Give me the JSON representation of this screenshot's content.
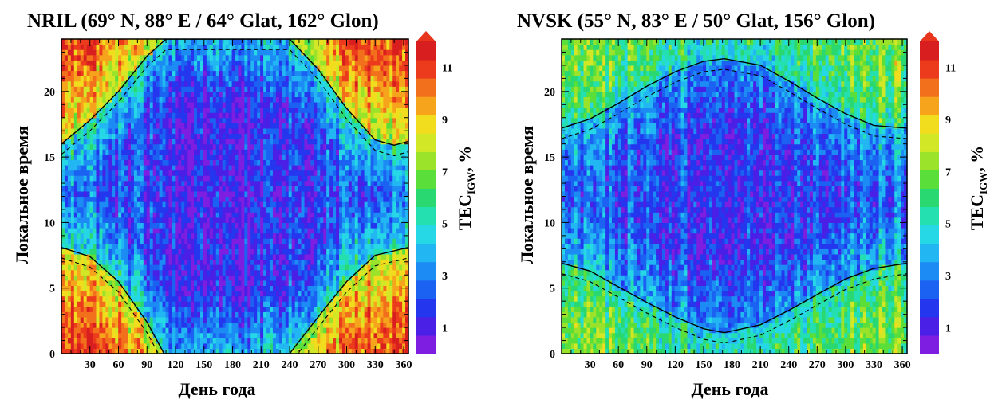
{
  "chart_data": [
    {
      "type": "heatmap",
      "title": "NRIL (69° N, 88° E / 64° Glat, 162° Glon)",
      "xlabel": "День года",
      "ylabel": "Локальное время",
      "xlim": [
        0,
        365
      ],
      "ylim": [
        0,
        24
      ],
      "xticks": [
        30,
        60,
        90,
        120,
        150,
        180,
        210,
        240,
        270,
        300,
        330,
        360
      ],
      "yticks": [
        0,
        5,
        10,
        15,
        20
      ],
      "colorbar": {
        "label_main": "TEC",
        "label_sub": "IGW",
        "label_unit": ", %",
        "range": [
          0,
          12
        ],
        "ticks": [
          1,
          3,
          5,
          7,
          9,
          11
        ],
        "colors": [
          "#7d1ee0",
          "#4a1fe6",
          "#2436ee",
          "#1c62f2",
          "#1c8cf4",
          "#22b6f2",
          "#26d8e6",
          "#24e0b0",
          "#2ad872",
          "#5ade3a",
          "#9ae32a",
          "#d2e826",
          "#f2dc1e",
          "#f6a41c",
          "#f2701c",
          "#ec3a1c",
          "#d81e1e"
        ]
      },
      "terminator_night_start_hours": [
        [
          0,
          16
        ],
        [
          30,
          17.8
        ],
        [
          60,
          20
        ],
        [
          90,
          22.7
        ],
        [
          110,
          24
        ],
        [
          240,
          24
        ],
        [
          270,
          21.7
        ],
        [
          300,
          18.7
        ],
        [
          330,
          16.3
        ],
        [
          350,
          15.9
        ],
        [
          365,
          16.2
        ]
      ],
      "terminator_morning_hours": [
        [
          0,
          8.1
        ],
        [
          30,
          7.4
        ],
        [
          60,
          5.5
        ],
        [
          90,
          2.4
        ],
        [
          108,
          0
        ],
        [
          240,
          0
        ],
        [
          270,
          2.8
        ],
        [
          300,
          5.5
        ],
        [
          330,
          7.5
        ],
        [
          365,
          8.1
        ]
      ],
      "features": {
        "low_region_days": [
          100,
          290
        ],
        "low_region_hours": [
          6,
          17
        ],
        "high_region": "winter night"
      }
    },
    {
      "type": "heatmap",
      "title": "NVSK (55° N, 83° E / 50° Glat, 156° Glon)",
      "xlabel": "День года",
      "ylabel": "Локальное время",
      "xlim": [
        0,
        365
      ],
      "ylim": [
        0,
        24
      ],
      "xticks": [
        30,
        60,
        90,
        120,
        150,
        180,
        210,
        240,
        270,
        300,
        330,
        360
      ],
      "yticks": [
        0,
        5,
        10,
        15,
        20
      ],
      "colorbar": {
        "label_main": "TEC",
        "label_sub": "IGW",
        "label_unit": ", %",
        "range": [
          0,
          12
        ],
        "ticks": [
          1,
          3,
          5,
          7,
          9,
          11
        ],
        "colors": [
          "#7d1ee0",
          "#4a1fe6",
          "#2436ee",
          "#1c62f2",
          "#1c8cf4",
          "#22b6f2",
          "#26d8e6",
          "#24e0b0",
          "#2ad872",
          "#5ade3a",
          "#9ae32a",
          "#d2e826",
          "#f2dc1e",
          "#f6a41c",
          "#f2701c",
          "#ec3a1c",
          "#d81e1e"
        ]
      },
      "terminator_night_start_hours": [
        [
          0,
          17.2
        ],
        [
          30,
          17.9
        ],
        [
          60,
          19.1
        ],
        [
          90,
          20.4
        ],
        [
          120,
          21.5
        ],
        [
          150,
          22.3
        ],
        [
          172,
          22.5
        ],
        [
          210,
          22
        ],
        [
          240,
          20.8
        ],
        [
          270,
          19.5
        ],
        [
          300,
          18.3
        ],
        [
          330,
          17.4
        ],
        [
          365,
          17.2
        ]
      ],
      "terminator_morning_hours": [
        [
          0,
          6.9
        ],
        [
          30,
          6.3
        ],
        [
          60,
          5.1
        ],
        [
          90,
          3.9
        ],
        [
          120,
          2.8
        ],
        [
          150,
          1.9
        ],
        [
          172,
          1.6
        ],
        [
          210,
          2.2
        ],
        [
          240,
          3.3
        ],
        [
          270,
          4.5
        ],
        [
          300,
          5.7
        ],
        [
          330,
          6.5
        ],
        [
          365,
          6.9
        ]
      ],
      "features": {
        "low_region_days": [
          60,
          300
        ],
        "low_region_hours": [
          3,
          21
        ],
        "high_region": "winter night"
      }
    }
  ]
}
